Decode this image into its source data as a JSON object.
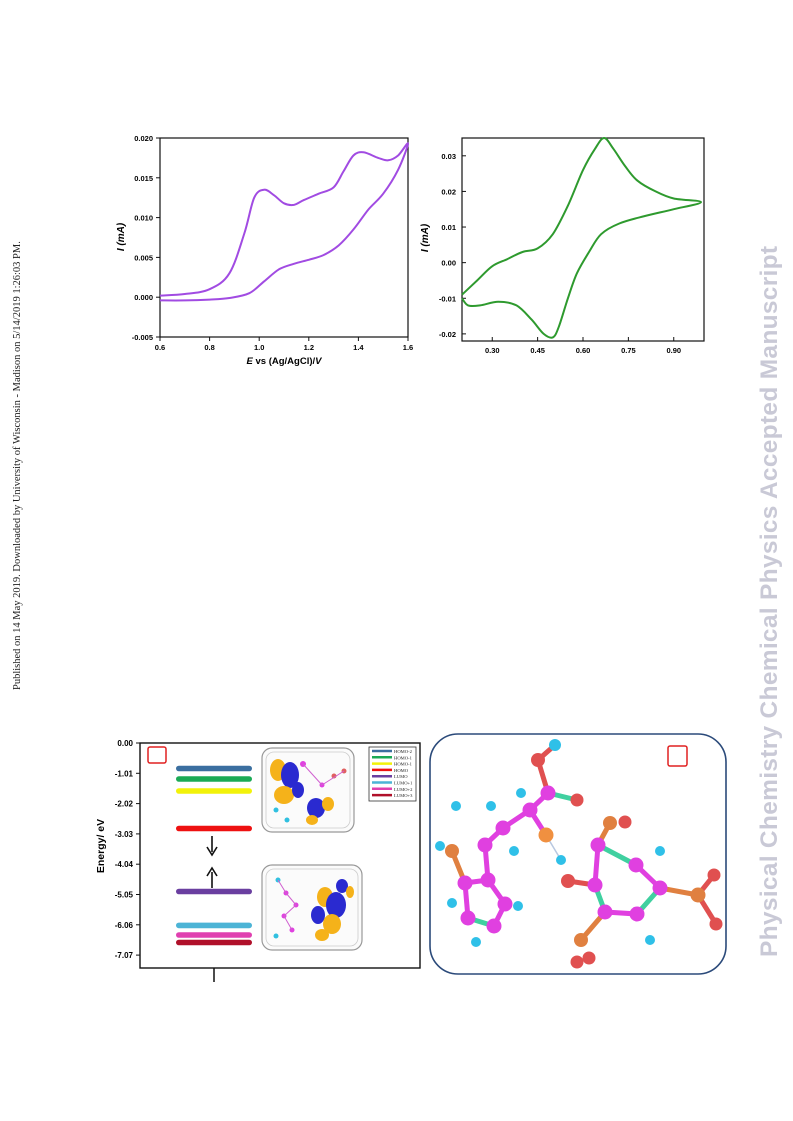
{
  "side_note": "Published on 14 May 2019. Downloaded by University of Wisconsin - Madison on 5/14/2019 1:26:03 PM.",
  "watermark": "Physical Chemistry Chemical Physics Accepted Manuscript",
  "colors": {
    "purple_curve": "#a14be2",
    "green_curve": "#2e9a2e",
    "panel_border": "#2b4a7a"
  },
  "chart_data": [
    {
      "type": "line",
      "panel": "top-left",
      "xlabel_prefix": "E",
      "xlabel_rest": " vs (Ag/AgCl)/",
      "xlabel_unit": "V",
      "ylabel": "I (mA)",
      "xlim": [
        0.6,
        1.6
      ],
      "ylim": [
        -0.005,
        0.02
      ],
      "xticks": [
        "0.6",
        "0.8",
        "1.0",
        "1.2",
        "1.4",
        "1.6"
      ],
      "yticks": [
        "-0.005",
        "0.000",
        "0.005",
        "0.010",
        "0.015",
        "0.020"
      ],
      "series": [
        {
          "forward": [
            [
              0.6,
              0.0002
            ],
            [
              0.7,
              0.0004
            ],
            [
              0.8,
              0.001
            ],
            [
              0.88,
              0.003
            ],
            [
              0.94,
              0.008
            ],
            [
              0.98,
              0.0125
            ],
            [
              1.02,
              0.0135
            ],
            [
              1.06,
              0.0128
            ],
            [
              1.1,
              0.0118
            ],
            [
              1.14,
              0.0116
            ],
            [
              1.18,
              0.0122
            ],
            [
              1.24,
              0.013
            ],
            [
              1.3,
              0.0138
            ],
            [
              1.34,
              0.0158
            ],
            [
              1.38,
              0.0178
            ],
            [
              1.42,
              0.0182
            ],
            [
              1.48,
              0.0175
            ],
            [
              1.52,
              0.0172
            ],
            [
              1.56,
              0.0178
            ],
            [
              1.6,
              0.0193
            ]
          ],
          "reverse": [
            [
              1.6,
              0.0193
            ],
            [
              1.56,
              0.016
            ],
            [
              1.5,
              0.013
            ],
            [
              1.44,
              0.011
            ],
            [
              1.38,
              0.0085
            ],
            [
              1.32,
              0.0065
            ],
            [
              1.26,
              0.0053
            ],
            [
              1.2,
              0.0047
            ],
            [
              1.14,
              0.0042
            ],
            [
              1.08,
              0.0035
            ],
            [
              1.02,
              0.002
            ],
            [
              0.96,
              0.0005
            ],
            [
              0.88,
              -0.0001
            ],
            [
              0.8,
              -0.0003
            ],
            [
              0.7,
              -0.0004
            ],
            [
              0.6,
              -0.0004
            ]
          ]
        }
      ]
    },
    {
      "type": "line",
      "panel": "top-right",
      "ylabel": "I (mA)",
      "xlim": [
        0.2,
        1.0
      ],
      "ylim": [
        -0.022,
        0.035
      ],
      "xticks": [
        "0.30",
        "0.45",
        "0.60",
        "0.75",
        "0.90"
      ],
      "xtick_values": [
        0.3,
        0.45,
        0.6,
        0.75,
        0.9
      ],
      "yticks": [
        "-0.02",
        "-0.01",
        "0.00",
        "0.01",
        "0.02",
        "0.03"
      ],
      "ytick_values": [
        -0.02,
        -0.01,
        0.0,
        0.01,
        0.02,
        0.03
      ],
      "series": [
        {
          "forward": [
            [
              0.2,
              -0.009
            ],
            [
              0.25,
              -0.005
            ],
            [
              0.3,
              -0.001
            ],
            [
              0.35,
              0.001
            ],
            [
              0.4,
              0.003
            ],
            [
              0.45,
              0.004
            ],
            [
              0.5,
              0.008
            ],
            [
              0.55,
              0.016
            ],
            [
              0.6,
              0.026
            ],
            [
              0.64,
              0.032
            ],
            [
              0.67,
              0.035
            ],
            [
              0.7,
              0.032
            ],
            [
              0.74,
              0.027
            ],
            [
              0.78,
              0.023
            ],
            [
              0.84,
              0.02
            ],
            [
              0.9,
              0.018
            ],
            [
              0.99,
              0.017
            ]
          ],
          "reverse": [
            [
              0.99,
              0.017
            ],
            [
              0.9,
              0.015
            ],
            [
              0.8,
              0.013
            ],
            [
              0.72,
              0.011
            ],
            [
              0.66,
              0.008
            ],
            [
              0.62,
              0.003
            ],
            [
              0.58,
              -0.003
            ],
            [
              0.55,
              -0.01
            ],
            [
              0.52,
              -0.018
            ],
            [
              0.5,
              -0.021
            ],
            [
              0.47,
              -0.02
            ],
            [
              0.43,
              -0.016
            ],
            [
              0.38,
              -0.012
            ],
            [
              0.32,
              -0.011
            ],
            [
              0.26,
              -0.012
            ],
            [
              0.22,
              -0.012
            ],
            [
              0.2,
              -0.01
            ]
          ]
        }
      ]
    },
    {
      "type": "bar",
      "panel": "bottom-left energy diagram",
      "ylabel": "Energy/ eV",
      "yticks": [
        "0.00",
        "-1.01",
        "-2.02",
        "-3.03",
        "-4.04",
        "-5.05",
        "-6.06",
        "-7.07"
      ],
      "ytick_values": [
        0.0,
        -1.01,
        -2.02,
        -3.03,
        -4.04,
        -5.05,
        -6.06,
        -7.07
      ],
      "ylim": [
        -7.5,
        0.0
      ],
      "series": [
        {
          "name": "HOMO-2",
          "value": -0.85,
          "color": "#3b6fa0"
        },
        {
          "name": "HOMO-1",
          "value": -1.2,
          "color": "#1aaa55"
        },
        {
          "name": "HOMO-1",
          "value": -1.6,
          "color": "#f2f20a"
        },
        {
          "name": "HOMO",
          "value": -2.85,
          "color": "#ee1111"
        },
        {
          "name": "LUMO",
          "value": -4.95,
          "color": "#6a3fa0"
        },
        {
          "name": "LUMO+1",
          "value": -6.08,
          "color": "#4cb4d6"
        },
        {
          "name": "LUMO+2",
          "value": -6.4,
          "color": "#e040b0"
        },
        {
          "name": "LUMO+3",
          "value": -6.65,
          "color": "#b0102a"
        }
      ]
    }
  ]
}
